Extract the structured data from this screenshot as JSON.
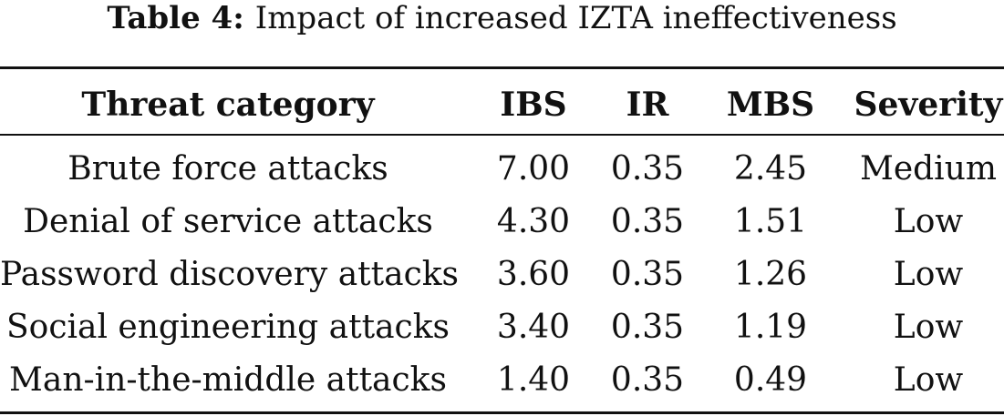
{
  "caption": {
    "label": "Table 4:",
    "text": "Impact of increased IZTA ineffectiveness"
  },
  "table": {
    "headers": [
      "Threat category",
      "IBS",
      "IR",
      "MBS",
      "Severity"
    ],
    "rows": [
      [
        "Brute force attacks",
        "7.00",
        "0.35",
        "2.45",
        "Medium"
      ],
      [
        "Denial of service attacks",
        "4.30",
        "0.35",
        "1.51",
        "Low"
      ],
      [
        "Password discovery attacks",
        "3.60",
        "0.35",
        "1.26",
        "Low"
      ],
      [
        "Social engineering attacks",
        "3.40",
        "0.35",
        "1.19",
        "Low"
      ],
      [
        "Man-in-the-middle attacks",
        "1.40",
        "0.35",
        "0.49",
        "Low"
      ]
    ]
  }
}
